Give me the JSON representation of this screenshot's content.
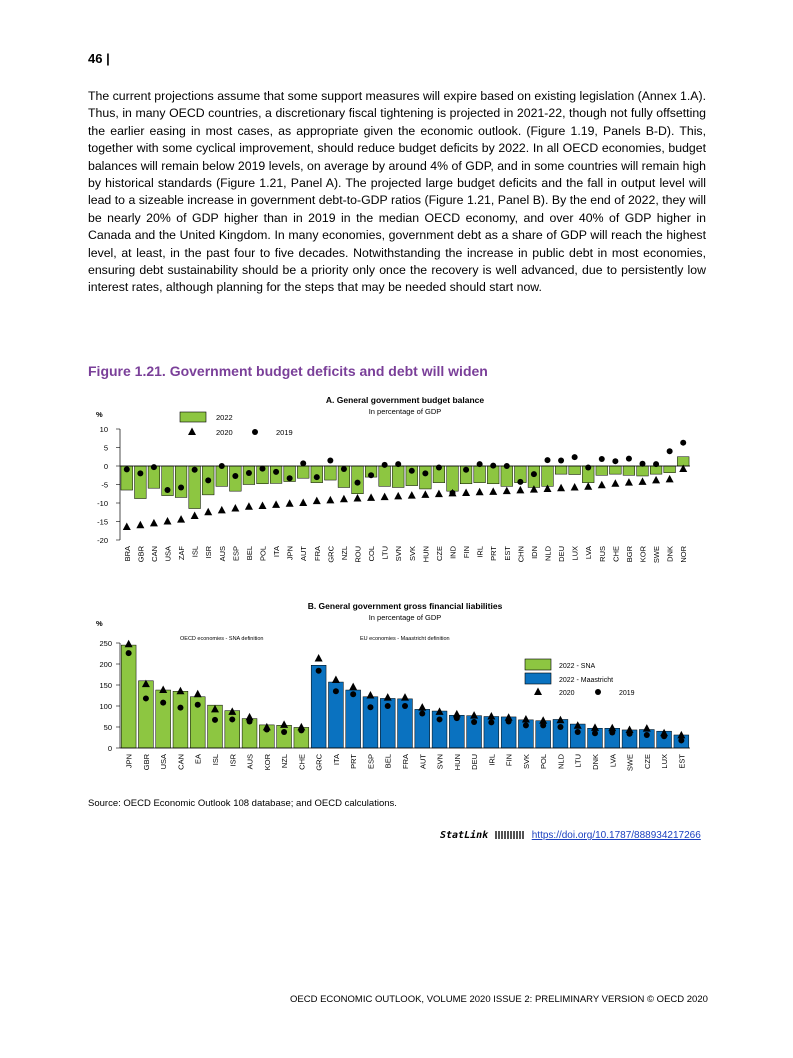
{
  "page_number": "46 |",
  "paragraph": "The current projections assume that some support measures will expire based on existing legislation (Annex 1.A). Thus, in many OECD countries, a discretionary fiscal tightening is projected in 2021-22, though not fully offsetting the earlier easing in most cases, as appropriate given the economic outlook. (Figure 1.19, Panels B-D). This, together with some cyclical improvement, should reduce budget deficits by 2022. In all OECD economies, budget balances will remain below 2019 levels, on average by around 4% of GDP, and in some countries will remain high by historical standards (Figure 1.21, Panel A). The projected large budget deficits and the fall in output level will lead to a sizeable increase in government debt-to-GDP ratios (Figure 1.21, Panel B). By the end of 2022, they will be nearly 20% of GDP higher than in 2019 in the median OECD economy, and over 40% of GDP higher in Canada and the United Kingdom. In many economies, government debt as a share of GDP will reach the highest level, at least, in the past four to five decades. Notwithstanding the increase in public debt in most economies, ensuring debt sustainability should be a priority only once the recovery is well advanced, due to persistently low interest rates, although planning for the steps that may be needed should start now.",
  "figure_title": "Figure 1.21. Government budget deficits and debt will widen",
  "source": "Source: OECD Economic Outlook 108 database; and OECD calculations.",
  "statlink_label": "StatLink",
  "statlink_url": "https://doi.org/10.1787/888934217266",
  "footer": "OECD ECONOMIC OUTLOOK, VOLUME 2020 ISSUE 2: PRELIMINARY VERSION © OECD 2020",
  "colors": {
    "green": "#8dc641",
    "blue": "#0a72c0",
    "title": "#7a3f99"
  },
  "chart_data": [
    {
      "type": "bar",
      "title": "A. General government budget balance",
      "subtitle": "In percentage of GDP",
      "ylabel": "%",
      "ylim": [
        -20,
        10
      ],
      "yticks": [
        10,
        5,
        0,
        -5,
        -10,
        -15,
        -20
      ],
      "legend": {
        "bar": "2022",
        "triangle": "2020",
        "circle": "2019"
      },
      "categories": [
        "BRA",
        "GBR",
        "CAN",
        "USA",
        "ZAF",
        "ISL",
        "ISR",
        "AUS",
        "ESP",
        "BEL",
        "POL",
        "ITA",
        "JPN",
        "AUT",
        "FRA",
        "GRC",
        "NZL",
        "ROU",
        "COL",
        "LTU",
        "SVN",
        "SVK",
        "HUN",
        "CZE",
        "IND",
        "FIN",
        "IRL",
        "PRT",
        "EST",
        "CHN",
        "IDN",
        "NLD",
        "DEU",
        "LUX",
        "LVA",
        "RUS",
        "CHE",
        "BGR",
        "KOR",
        "SWE",
        "DNK",
        "NOR"
      ],
      "series": [
        {
          "name": "2022",
          "values": [
            -6.5,
            -8.8,
            -6,
            -8,
            -8.5,
            -11.5,
            -7.8,
            -5.5,
            -6.8,
            -5,
            -4.8,
            -4.7,
            -4.2,
            -3.3,
            -4.5,
            -3.8,
            -5.8,
            -7.5,
            -3,
            -5.5,
            -5.8,
            -5.3,
            -6.2,
            -4.5,
            -6.8,
            -4.8,
            -4.5,
            -4.8,
            -5.5,
            -4.5,
            -5.8,
            -5.5,
            -2.2,
            -2.3,
            -4.5,
            -2.5,
            -2.2,
            -2.5,
            -2.7,
            -2.2,
            -1.8,
            2.5
          ]
        },
        {
          "name": "2020",
          "values": [
            -16.5,
            -16,
            -15.5,
            -15,
            -14.5,
            -13.5,
            -12.5,
            -12,
            -11.5,
            -11,
            -10.8,
            -10.5,
            -10.2,
            -10,
            -9.5,
            -9.3,
            -9,
            -8.8,
            -8.6,
            -8.4,
            -8.2,
            -8,
            -7.8,
            -7.6,
            -7.4,
            -7.3,
            -7.1,
            -7,
            -6.8,
            -6.6,
            -6.4,
            -6.2,
            -6,
            -5.8,
            -5.6,
            -5.2,
            -4.8,
            -4.5,
            -4.3,
            -3.9,
            -3.6,
            -0.8
          ]
        },
        {
          "name": "2019",
          "values": [
            -0.9,
            -2,
            -0.3,
            -6.5,
            -5.8,
            -1,
            -3.9,
            0,
            -2.7,
            -1.9,
            -0.7,
            -1.6,
            -3.3,
            0.7,
            -3,
            1.5,
            -0.8,
            -4.5,
            -2.5,
            0.3,
            0.5,
            -1.3,
            -2,
            -0.4,
            -7.3,
            -1,
            0.5,
            0.1,
            0,
            -4.3,
            -2.2,
            1.6,
            1.5,
            2.4,
            -0.4,
            1.9,
            1.3,
            2,
            0.6,
            0.5,
            4,
            6.3
          ]
        }
      ]
    },
    {
      "type": "bar",
      "title": "B. General government gross financial liabilities",
      "subtitle": "In percentage of GDP",
      "ylabel": "%",
      "ylim": [
        0,
        250
      ],
      "yticks": [
        250,
        200,
        150,
        100,
        50,
        0
      ],
      "group_labels": [
        "OECD economies - SNA definition",
        "EU economies - Maastricht definition"
      ],
      "legend": {
        "sna": "2022 - SNA",
        "maastricht": "2022 - Maastricht",
        "triangle": "2020",
        "circle": "2019"
      },
      "categories": [
        "JPN",
        "GBR",
        "USA",
        "CAN",
        "EA",
        "ISL",
        "ISR",
        "AUS",
        "KOR",
        "NZL",
        "CHE",
        "GRC",
        "ITA",
        "PRT",
        "ESP",
        "BEL",
        "FRA",
        "AUT",
        "SVN",
        "HUN",
        "DEU",
        "IRL",
        "FIN",
        "SVK",
        "POL",
        "NLD",
        "LTU",
        "DNK",
        "LVA",
        "SWE",
        "CZE",
        "LUX",
        "EST"
      ],
      "definition": [
        "SNA",
        "SNA",
        "SNA",
        "SNA",
        "SNA",
        "SNA",
        "SNA",
        "SNA",
        "SNA",
        "SNA",
        "SNA",
        "Maastricht",
        "Maastricht",
        "Maastricht",
        "Maastricht",
        "Maastricht",
        "Maastricht",
        "Maastricht",
        "Maastricht",
        "Maastricht",
        "Maastricht",
        "Maastricht",
        "Maastricht",
        "Maastricht",
        "Maastricht",
        "Maastricht",
        "Maastricht",
        "Maastricht",
        "Maastricht",
        "Maastricht",
        "Maastricht",
        "Maastricht",
        "Maastricht"
      ],
      "series": [
        {
          "name": "2022",
          "values": [
            245,
            160,
            138,
            135,
            122,
            102,
            89,
            70,
            55,
            54,
            49,
            197,
            157,
            138,
            122,
            118,
            117,
            92,
            88,
            78,
            77,
            75,
            74,
            67,
            65,
            68,
            57,
            47,
            47,
            43,
            44,
            40,
            31
          ]
        },
        {
          "name": "2020",
          "values": [
            247,
            152,
            138,
            135,
            128,
            92,
            86,
            73,
            49,
            55,
            49,
            213,
            162,
            145,
            125,
            120,
            120,
            96,
            86,
            80,
            77,
            75,
            72,
            68,
            65,
            66,
            53,
            48,
            47,
            43,
            46,
            35,
            30
          ]
        },
        {
          "name": "2019",
          "values": [
            226,
            118,
            108,
            96,
            103,
            67,
            68,
            63,
            44,
            38,
            42,
            184,
            135,
            128,
            97,
            100,
            100,
            82,
            68,
            71,
            62,
            61,
            63,
            54,
            54,
            50,
            38,
            35,
            37,
            34,
            31,
            28,
            18
          ]
        }
      ]
    }
  ]
}
